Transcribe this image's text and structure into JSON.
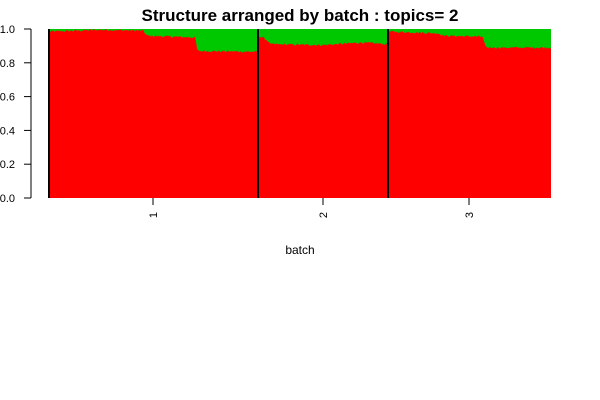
{
  "chart_data": {
    "type": "area",
    "title": "Structure arranged by batch : topics= 2",
    "xlabel": "batch",
    "ylabel": "",
    "ylim": [
      0,
      1
    ],
    "y_ticks": [
      "0.0",
      "0.2",
      "0.4",
      "0.6",
      "0.8",
      "1.0"
    ],
    "categories": [
      "1",
      "2",
      "3"
    ],
    "stacked": true,
    "grid": false,
    "legend": "none",
    "colors": {
      "topic1": "#ff0000",
      "topic2": "#00c800",
      "separator": "#000000"
    },
    "batches": [
      {
        "label": "1",
        "topic1_profile": [
          {
            "at": 0.0,
            "value": 0.985
          },
          {
            "at": 0.25,
            "value": 0.995
          },
          {
            "at": 0.45,
            "value": 0.99
          },
          {
            "at": 0.47,
            "value": 0.96
          },
          {
            "at": 0.7,
            "value": 0.95
          },
          {
            "at": 0.71,
            "value": 0.87
          },
          {
            "at": 1.0,
            "value": 0.865
          }
        ]
      },
      {
        "label": "2",
        "topic1_profile": [
          {
            "at": 0.0,
            "value": 0.96
          },
          {
            "at": 0.05,
            "value": 0.945
          },
          {
            "at": 0.1,
            "value": 0.91
          },
          {
            "at": 0.5,
            "value": 0.905
          },
          {
            "at": 0.8,
            "value": 0.92
          },
          {
            "at": 1.0,
            "value": 0.91
          }
        ]
      },
      {
        "label": "3",
        "topic1_profile": [
          {
            "at": 0.0,
            "value": 0.985
          },
          {
            "at": 0.3,
            "value": 0.975
          },
          {
            "at": 0.35,
            "value": 0.96
          },
          {
            "at": 0.58,
            "value": 0.955
          },
          {
            "at": 0.6,
            "value": 0.89
          },
          {
            "at": 1.0,
            "value": 0.89
          }
        ]
      }
    ]
  }
}
